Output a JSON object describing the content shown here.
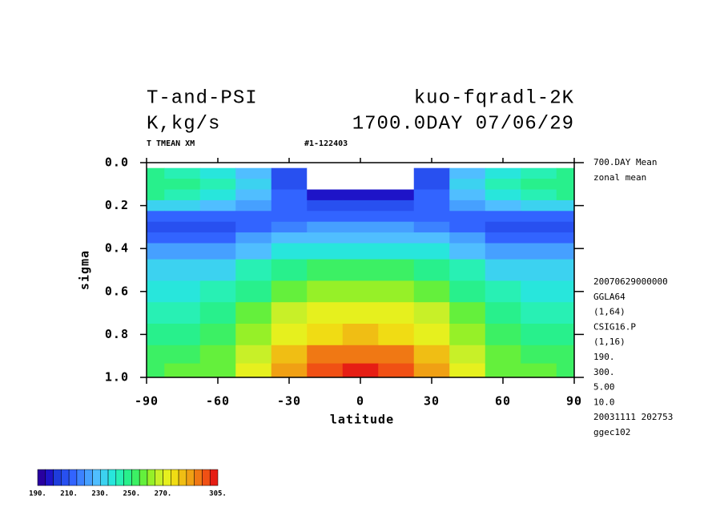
{
  "chart_data": {
    "type": "contour",
    "title": "T-and-PSI",
    "title_right": "kuo-fqradl-2K",
    "subtitle": "K,kg/s",
    "subtitle_right": "1700.0DAY 07/06/29",
    "field_label": "T TMEAN XM",
    "run_label": "#1-122403",
    "xlabel": "latitude",
    "ylabel": "sigma",
    "side_notes_top": [
      "700.DAY Mean",
      "zonal mean"
    ],
    "side_notes": [
      "20070629000000",
      "GGLA64",
      "(1,64)",
      "CSIG16.P",
      "(1,16)",
      "190.",
      "300.",
      "5.00",
      "10.0",
      "20031111 202753",
      "ggec102"
    ],
    "xlim": [
      -90,
      90
    ],
    "xticks": [
      -90,
      -60,
      -30,
      0,
      30,
      60,
      90
    ],
    "ylim": [
      0,
      1
    ],
    "y_inverted": true,
    "yticks": [
      {
        "value": 0,
        "label": "0.0"
      },
      0.2,
      0.4,
      0.6,
      0.8,
      {
        "value": 1,
        "label": "1.0"
      }
    ],
    "x": [
      -90,
      -75,
      -60,
      -45,
      -30,
      -15,
      0,
      15,
      30,
      45,
      60,
      75,
      90
    ],
    "y": [
      0.05,
      0.1,
      0.15,
      0.2,
      0.25,
      0.3,
      0.35,
      0.4,
      0.5,
      0.6,
      0.7,
      0.8,
      0.9,
      0.97
    ],
    "z": [
      [
        245,
        243,
        238,
        225,
        205,
        185,
        180,
        185,
        205,
        225,
        238,
        243,
        245
      ],
      [
        248,
        246,
        242,
        230,
        208,
        185,
        182,
        185,
        208,
        230,
        242,
        246,
        248
      ],
      [
        245,
        243,
        238,
        228,
        210,
        198,
        195,
        198,
        210,
        228,
        238,
        243,
        245
      ],
      [
        232,
        230,
        226,
        220,
        212,
        208,
        206,
        208,
        212,
        220,
        226,
        230,
        232
      ],
      [
        210,
        210,
        212,
        214,
        214,
        214,
        214,
        214,
        214,
        214,
        212,
        210,
        210
      ],
      [
        205,
        205,
        207,
        212,
        218,
        220,
        220,
        220,
        218,
        212,
        207,
        205,
        205
      ],
      [
        212,
        212,
        214,
        220,
        226,
        228,
        229,
        228,
        226,
        220,
        214,
        212,
        212
      ],
      [
        220,
        220,
        222,
        228,
        235,
        238,
        239,
        238,
        235,
        228,
        222,
        220,
        220
      ],
      [
        230,
        230,
        233,
        240,
        248,
        252,
        253,
        252,
        248,
        240,
        233,
        230,
        230
      ],
      [
        238,
        238,
        241,
        248,
        257,
        261,
        262,
        261,
        257,
        248,
        241,
        238,
        238
      ],
      [
        244,
        244,
        247,
        255,
        265,
        270,
        271,
        270,
        265,
        255,
        247,
        244,
        244
      ],
      [
        248,
        249,
        252,
        261,
        273,
        279,
        280,
        279,
        273,
        261,
        252,
        249,
        248
      ],
      [
        251,
        252,
        256,
        266,
        282,
        290,
        292,
        290,
        282,
        266,
        256,
        252,
        251
      ],
      [
        254,
        255,
        259,
        270,
        288,
        298,
        300,
        298,
        288,
        270,
        259,
        255,
        254
      ]
    ],
    "colorbar": {
      "levels": [
        190,
        195,
        200,
        205,
        210,
        215,
        220,
        225,
        230,
        235,
        240,
        245,
        250,
        255,
        260,
        265,
        270,
        275,
        280,
        285,
        290,
        295,
        300,
        305
      ],
      "colors": [
        "#2800a0",
        "#1e14c8",
        "#1e3cdc",
        "#2850f0",
        "#3264ff",
        "#3c82ff",
        "#46a0ff",
        "#50beff",
        "#3cd2f0",
        "#28e6dc",
        "#28f0b4",
        "#28f08c",
        "#3cf064",
        "#64f03c",
        "#96f028",
        "#c8f028",
        "#e6f01e",
        "#f0dc14",
        "#f0be14",
        "#f0a014",
        "#f07814",
        "#f05014",
        "#e61e14"
      ],
      "ticks": [
        {
          "value": 190,
          "label": "190."
        },
        {
          "value": 210,
          "label": "210."
        },
        {
          "value": 230,
          "label": "230."
        },
        {
          "value": 250,
          "label": "250."
        },
        {
          "value": 270,
          "label": "270."
        },
        {
          "value": 305,
          "label": "305."
        }
      ]
    }
  }
}
